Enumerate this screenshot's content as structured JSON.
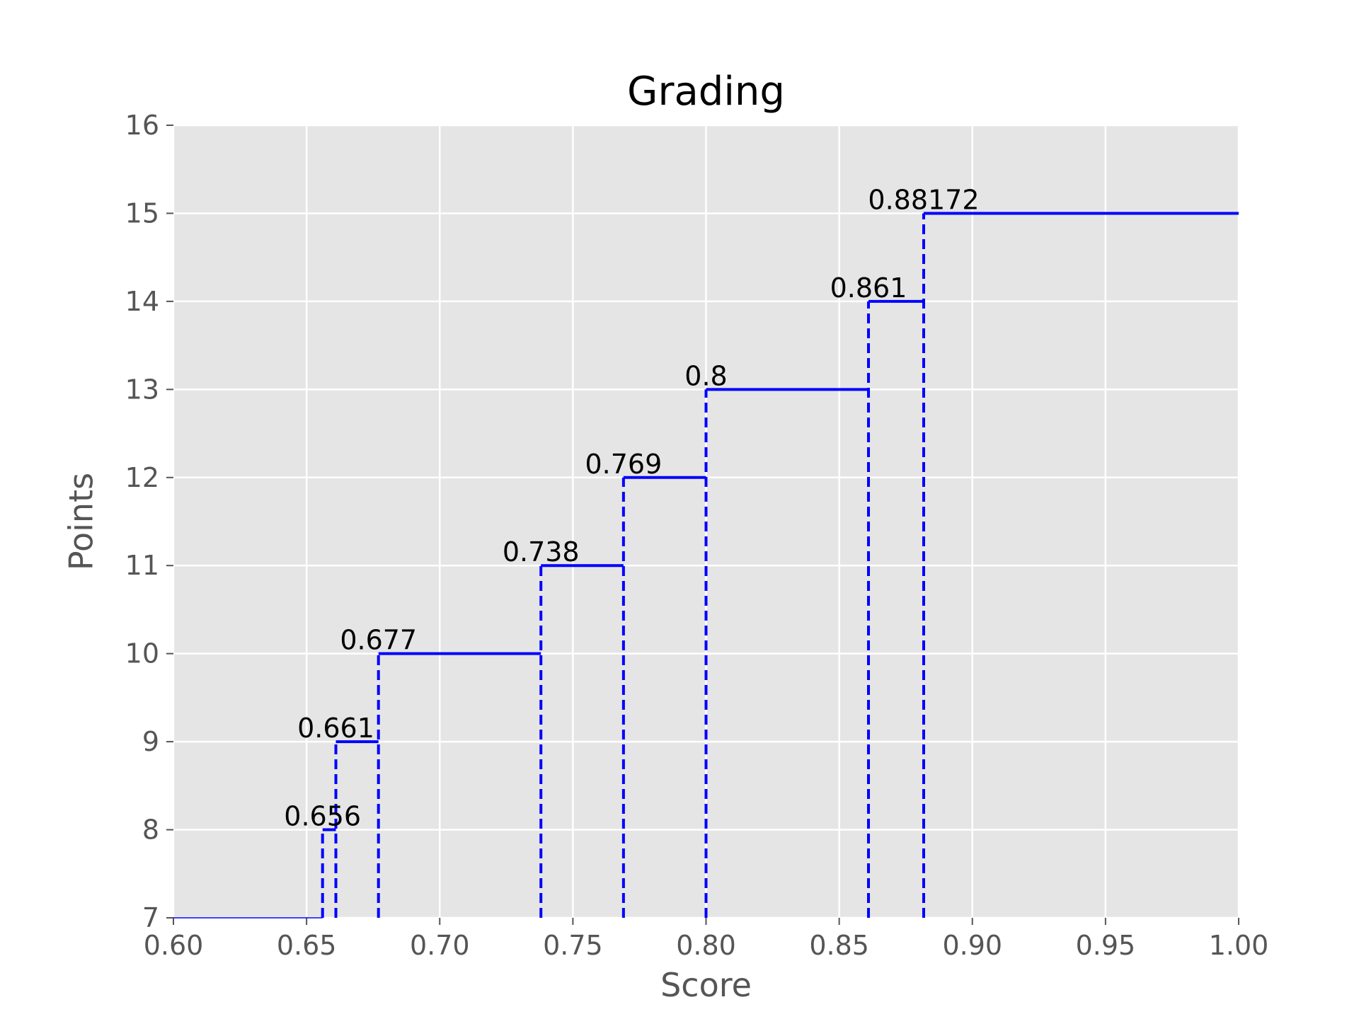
{
  "chart_data": {
    "type": "line",
    "title": "Grading",
    "xlabel": "Score",
    "ylabel": "Points",
    "xlim": [
      0.6,
      1.0
    ],
    "ylim": [
      7,
      16
    ],
    "grid": true,
    "x_ticks": [
      "0.60",
      "0.65",
      "0.70",
      "0.75",
      "0.80",
      "0.85",
      "0.90",
      "0.95",
      "1.00"
    ],
    "y_ticks": [
      "7",
      "8",
      "9",
      "10",
      "11",
      "12",
      "13",
      "14",
      "15",
      "16"
    ],
    "baseline": {
      "x_start": 0.6,
      "x_end": 0.656,
      "points": 7
    },
    "steps": [
      {
        "label": "0.656",
        "x_start": 0.656,
        "x_end": 0.661,
        "points": 8
      },
      {
        "label": "0.661",
        "x_start": 0.661,
        "x_end": 0.677,
        "points": 9
      },
      {
        "label": "0.677",
        "x_start": 0.677,
        "x_end": 0.738,
        "points": 10
      },
      {
        "label": "0.738",
        "x_start": 0.738,
        "x_end": 0.769,
        "points": 11
      },
      {
        "label": "0.769",
        "x_start": 0.769,
        "x_end": 0.8,
        "points": 12
      },
      {
        "label": "0.8",
        "x_start": 0.8,
        "x_end": 0.861,
        "points": 13
      },
      {
        "label": "0.861",
        "x_start": 0.861,
        "x_end": 0.88172,
        "points": 14
      },
      {
        "label": "0.88172",
        "x_start": 0.88172,
        "x_end": 1.0,
        "points": 15
      }
    ],
    "colors": {
      "line": "#0000ff",
      "plot_background": "#e5e5e5",
      "grid": "#ffffff"
    }
  }
}
